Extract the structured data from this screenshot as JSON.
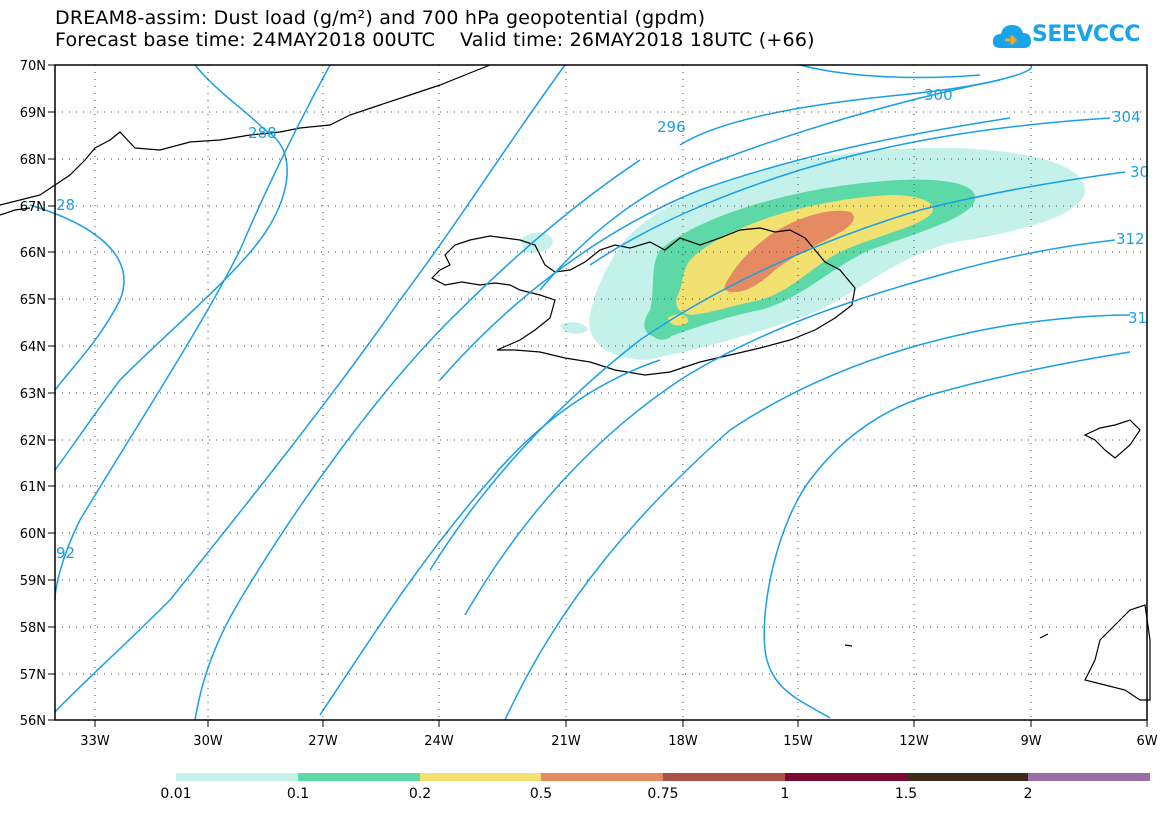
{
  "header": {
    "title_line1": "DREAM8-assim: Dust load (g/m²) and 700 hPa geopotential (gpdm)",
    "title_line2": "Forecast base time: 24MAY2018 00UTC    Valid time: 26MAY2018 18UTC (+66)"
  },
  "logo": {
    "text": "SEEVCCC",
    "icon": "cloud-icon",
    "color": "#1aa3e8"
  },
  "map": {
    "lon_range": [
      "34.5W",
      "6W"
    ],
    "lat_range": [
      "56N",
      "70N"
    ],
    "lat_labels": [
      "70N",
      "69N",
      "68N",
      "67N",
      "66N",
      "65N",
      "64N",
      "63N",
      "62N",
      "61N",
      "60N",
      "59N",
      "58N",
      "57N",
      "56N"
    ],
    "lon_labels": [
      "33W",
      "30W",
      "27W",
      "24W",
      "21W",
      "18W",
      "15W",
      "12W",
      "9W",
      "6W"
    ],
    "grid": "dotted",
    "contour_color": "#1a9fe5",
    "coastline_color": "#000000",
    "contour_labels": [
      "288",
      "296",
      "300",
      "304",
      "30",
      "312",
      "31",
      "92",
      "28"
    ]
  },
  "legend": {
    "labels": [
      "0.01",
      "0.1",
      "0.2",
      "0.5",
      "0.75",
      "1",
      "1.5",
      "2"
    ],
    "colors": [
      "#c4f2ea",
      "#5dd9a8",
      "#f2e070",
      "#e58a62",
      "#a8504a",
      "#7b0a30",
      "#3d2a1a",
      "#9a6fa5"
    ]
  }
}
